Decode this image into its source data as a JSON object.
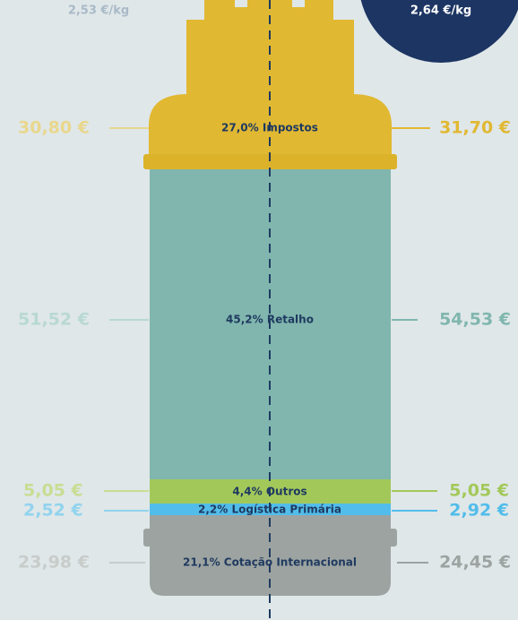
{
  "price_left": "2,53 €/kg",
  "price_right": "2,64 €/kg",
  "segments": [
    {
      "label": "27,0% Impostos",
      "left": "30,80 €",
      "right": "31,70 €"
    },
    {
      "label": "45,2% Retalho",
      "left": "51,52 €",
      "right": "54,53 €"
    },
    {
      "label": "4,4% Outros",
      "left": "5,05 €",
      "right": "5,05 €"
    },
    {
      "label": "2,2% Logística Primária",
      "left": "2,52 €",
      "right": "2,92 €"
    },
    {
      "label": "21,1% Cotação Internacional",
      "left": "23,98 €",
      "right": "24,45 €"
    }
  ]
}
